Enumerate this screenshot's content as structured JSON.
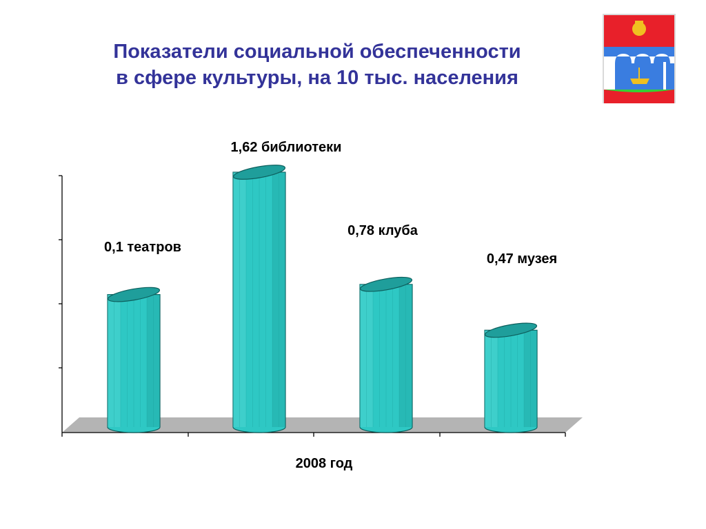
{
  "title_lines": [
    "Показатели социальной обеспеченности",
    "в сфере культуры, на 10 тыс. населения"
  ],
  "chart_data": {
    "type": "bar",
    "title": "Показатели социальной обеспеченности в сфере культуры, на 10 тыс. населения",
    "xlabel": "2008 год",
    "ylabel": "",
    "categories": [
      "театров",
      "библиотеки",
      "клуба",
      "музея"
    ],
    "labels": [
      "0,1 театров",
      "1,62 библиотеки",
      "0,78 клуба",
      "0,47 музея"
    ],
    "values": [
      0.1,
      1.62,
      0.78,
      0.47
    ],
    "bar_levels": [
      0.52,
      1.0,
      0.56,
      0.38
    ],
    "legend": "none",
    "grid": false
  },
  "colors": {
    "title": "#333399",
    "bar_front": "#2ec8c4",
    "bar_dark": "#1a9e9a",
    "bar_light": "#6fe3df",
    "bar_top": "#1f9e9b",
    "floor": "#b4b4b4"
  },
  "emblem": {
    "icon": "coat-of-arms-icon"
  }
}
